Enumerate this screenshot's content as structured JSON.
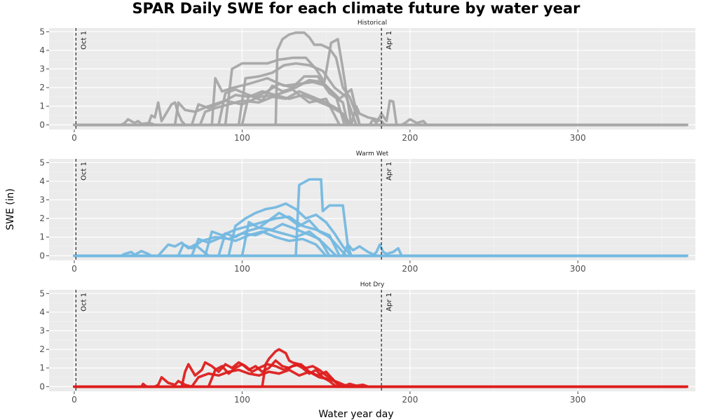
{
  "chart_data": {
    "type": "line",
    "title": "SPAR Daily SWE for each climate future by water year",
    "xlabel": "Water year day",
    "ylabel": "SWE (in)",
    "xlim": [
      -15,
      370
    ],
    "ylim": [
      -0.25,
      5.2
    ],
    "x_ticks": [
      0,
      100,
      200,
      300
    ],
    "y_ticks": [
      0,
      1,
      2,
      3,
      4,
      5
    ],
    "grid": true,
    "reference_lines": [
      {
        "x": 1,
        "label": "Oct 1"
      },
      {
        "x": 183,
        "label": "Apr 1"
      }
    ],
    "panels": [
      {
        "name": "Historical",
        "color": "#a6a6a6",
        "series": [
          {
            "x": [
              0,
              120,
              121,
              124,
              128,
              132,
              137,
              140,
              143,
              147,
              152,
              156,
              160,
              164,
              167,
              170,
              365
            ],
            "y": [
              0,
              0,
              4.0,
              4.6,
              4.85,
              4.95,
              4.95,
              4.7,
              4.3,
              4.3,
              4.1,
              3.6,
              2.0,
              1.5,
              0.8,
              0,
              0
            ]
          },
          {
            "x": [
              0,
              90,
              94,
              100,
              108,
              115,
              122,
              130,
              138,
              144,
              149,
              153,
              157,
              160,
              165,
              365
            ],
            "y": [
              0,
              0,
              3.0,
              3.3,
              3.3,
              3.3,
              3.5,
              3.6,
              3.6,
              3.0,
              2.3,
              4.4,
              4.6,
              3.0,
              0,
              0
            ]
          },
          {
            "x": [
              0,
              98,
              102,
              110,
              118,
              125,
              132,
              140,
              148,
              155,
              162,
              168,
              365
            ],
            "y": [
              0,
              0,
              2.5,
              2.6,
              2.8,
              3.2,
              3.3,
              3.2,
              2.9,
              2.0,
              1.5,
              0,
              0
            ]
          },
          {
            "x": [
              0,
              82,
              84,
              88,
              95,
              104,
              115,
              125,
              134,
              142,
              150,
              158,
              165,
              170,
              365
            ],
            "y": [
              0,
              0,
              2.5,
              1.8,
              2.0,
              2.2,
              2.5,
              2.1,
              2.2,
              2.3,
              2.1,
              1.4,
              1.9,
              0,
              0
            ]
          },
          {
            "x": [
              0,
              100,
              104,
              108,
              115,
              122,
              130,
              137,
              145,
              152,
              160,
              163,
              365
            ],
            "y": [
              0,
              0,
              1.6,
              1.5,
              1.8,
              2.2,
              2.0,
              2.6,
              2.6,
              1.7,
              1.2,
              0,
              0
            ]
          },
          {
            "x": [
              0,
              60,
              62,
              66,
              72,
              80,
              90,
              100,
              110,
              120,
              130,
              140,
              150,
              158,
              365
            ],
            "y": [
              0,
              0,
              1.2,
              0.8,
              0.7,
              1.0,
              1.3,
              1.1,
              1.5,
              1.6,
              1.9,
              1.2,
              1.4,
              0,
              0
            ]
          },
          {
            "x": [
              0,
              70,
              74,
              80,
              88,
              96,
              104,
              112,
              120,
              128,
              136,
              144,
              152,
              160,
              165,
              365
            ],
            "y": [
              0,
              0,
              1.1,
              0.9,
              1.2,
              1.6,
              1.5,
              1.8,
              1.6,
              1.4,
              1.6,
              1.3,
              1.0,
              0.6,
              0,
              0
            ]
          },
          {
            "x": [
              0,
              44,
              46,
              48,
              50,
              52,
              56,
              58,
              60,
              62,
              64,
              66,
              365
            ],
            "y": [
              0,
              0,
              0.5,
              0.4,
              1.2,
              0.2,
              0.8,
              1.1,
              1.2,
              0.6,
              0.2,
              0,
              0
            ]
          },
          {
            "x": [
              0,
              75,
              78,
              84,
              92,
              100,
              110,
              118,
              126,
              134,
              142,
              150,
              158,
              163,
              365
            ],
            "y": [
              0,
              0,
              0.7,
              0.9,
              1.1,
              1.3,
              1.2,
              1.5,
              1.4,
              1.8,
              1.5,
              1.2,
              0.8,
              0,
              0
            ]
          },
          {
            "x": [
              0,
              86,
              90,
              96,
              104,
              112,
              118,
              124,
              132,
              140,
              148,
              156,
              161,
              365
            ],
            "y": [
              0,
              0,
              1.7,
              1.9,
              1.6,
              1.3,
              2.1,
              1.8,
              2.0,
              2.4,
              2.3,
              1.5,
              0,
              0
            ]
          },
          {
            "x": [
              0,
              28,
              30,
              32,
              36,
              38,
              40,
              45,
              48,
              365
            ],
            "y": [
              0,
              0,
              0.1,
              0.3,
              0.1,
              0.2,
              0.05,
              0.1,
              0,
              0
            ]
          },
          {
            "x": [
              0,
              176,
              178,
              180,
              183,
              186,
              188,
              190,
              192,
              365
            ],
            "y": [
              0,
              0,
              0.3,
              0.1,
              0.6,
              0.2,
              1.3,
              1.25,
              0,
              0
            ]
          },
          {
            "x": [
              0,
              165,
              168,
              170,
              175,
              180,
              183,
              185,
              365
            ],
            "y": [
              0,
              0,
              1.0,
              0.6,
              0.4,
              0.3,
              0.2,
              0,
              0
            ]
          },
          {
            "x": [
              0,
              195,
              197,
              200,
              204,
              208,
              210,
              365
            ],
            "y": [
              0,
              0,
              0.1,
              0.3,
              0.1,
              0.2,
              0,
              0
            ]
          }
        ]
      },
      {
        "name": "Warm Wet",
        "color": "#74b8e0",
        "series": [
          {
            "x": [
              0,
              132,
              134,
              138,
              140,
              144,
              147,
              148,
              152,
              156,
              160,
              163,
              165,
              365
            ],
            "y": [
              0,
              0,
              3.8,
              4.0,
              4.1,
              4.1,
              4.1,
              2.4,
              2.7,
              2.7,
              2.7,
              0.5,
              0,
              0
            ]
          },
          {
            "x": [
              0,
              92,
              96,
              102,
              108,
              114,
              120,
              126,
              132,
              138,
              144,
              150,
              155,
              160,
              165,
              365
            ],
            "y": [
              0,
              0,
              1.6,
              2.0,
              2.3,
              2.5,
              2.6,
              2.8,
              2.5,
              2.0,
              2.2,
              1.8,
              1.2,
              0.5,
              0,
              0
            ]
          },
          {
            "x": [
              0,
              78,
              82,
              88,
              96,
              104,
              112,
              120,
              128,
              136,
              144,
              152,
              158,
              365
            ],
            "y": [
              0,
              0,
              1.3,
              1.1,
              1.4,
              1.6,
              1.8,
              2.0,
              2.1,
              1.6,
              1.4,
              1.1,
              0,
              0
            ]
          },
          {
            "x": [
              0,
              100,
              104,
              110,
              116,
              122,
              128,
              134,
              140,
              146,
              152,
              158,
              162,
              365
            ],
            "y": [
              0,
              0,
              1.8,
              1.5,
              1.9,
              2.3,
              2.0,
              1.6,
              1.9,
              1.3,
              1.0,
              0.4,
              0,
              0
            ]
          },
          {
            "x": [
              0,
              62,
              65,
              70,
              76,
              84,
              92,
              100,
              108,
              116,
              124,
              132,
              140,
              148,
              156,
              365
            ],
            "y": [
              0,
              0,
              0.6,
              0.4,
              0.8,
              1.0,
              0.9,
              1.2,
              1.1,
              1.4,
              1.2,
              1.0,
              1.3,
              0.7,
              0,
              0
            ]
          },
          {
            "x": [
              0,
              50,
              53,
              56,
              60,
              64,
              68,
              72,
              76,
              80,
              365
            ],
            "y": [
              0,
              0,
              0.3,
              0.6,
              0.5,
              0.7,
              0.4,
              0.6,
              0.3,
              0,
              0
            ]
          },
          {
            "x": [
              0,
              86,
              90,
              96,
              102,
              110,
              118,
              124,
              130,
              138,
              146,
              152,
              365
            ],
            "y": [
              0,
              0,
              1.2,
              1.0,
              1.3,
              1.5,
              1.4,
              1.7,
              1.5,
              1.2,
              0.9,
              0,
              0
            ]
          },
          {
            "x": [
              0,
              70,
              74,
              80,
              88,
              96,
              104,
              112,
              120,
              128,
              136,
              144,
              150,
              365
            ],
            "y": [
              0,
              0,
              0.9,
              0.7,
              1.0,
              0.8,
              1.1,
              1.3,
              1.0,
              0.8,
              0.9,
              0.6,
              0,
              0
            ]
          },
          {
            "x": [
              0,
              160,
              163,
              166,
              170,
              175,
              180,
              365
            ],
            "y": [
              0,
              0,
              0.6,
              0.3,
              0.5,
              0.2,
              0,
              0
            ]
          },
          {
            "x": [
              0,
              178,
              180,
              182,
              184,
              186,
              190,
              193,
              195,
              365
            ],
            "y": [
              0,
              0,
              0.2,
              0.6,
              0.2,
              0.1,
              0.2,
              0.4,
              0,
              0
            ]
          },
          {
            "x": [
              0,
              28,
              30,
              34,
              36,
              40,
              44,
              46,
              365
            ],
            "y": [
              0,
              0,
              0.1,
              0.2,
              0.05,
              0.25,
              0.1,
              0,
              0
            ]
          }
        ]
      },
      {
        "name": "Hot Dry",
        "color": "#de1d1d",
        "series": [
          {
            "x": [
              0,
              112,
              114,
              116,
              118,
              120,
              122,
              124,
              126,
              128,
              130,
              134,
              138,
              142,
              146,
              150,
              154,
              158,
              365
            ],
            "y": [
              0,
              0,
              1.2,
              1.5,
              1.7,
              1.9,
              2.0,
              1.9,
              1.8,
              1.4,
              1.3,
              1.2,
              1.0,
              1.1,
              0.9,
              0.6,
              0.4,
              0,
              0
            ]
          },
          {
            "x": [
              0,
              64,
              66,
              68,
              72,
              76,
              78,
              82,
              86,
              90,
              94,
              98,
              102,
              106,
              110,
              115,
              120,
              125,
              130,
              135,
              140,
              145,
              150,
              155,
              160,
              365
            ],
            "y": [
              0,
              0,
              0.8,
              1.2,
              0.6,
              0.9,
              1.3,
              1.1,
              0.8,
              1.2,
              1.0,
              1.3,
              1.1,
              0.8,
              1.0,
              1.2,
              1.1,
              0.9,
              1.1,
              1.2,
              0.8,
              0.6,
              0.8,
              0.3,
              0,
              0
            ]
          },
          {
            "x": [
              0,
              80,
              84,
              88,
              92,
              96,
              100,
              104,
              108,
              112,
              116,
              120,
              124,
              128,
              132,
              136,
              140,
              144,
              148,
              152,
              156,
              365
            ],
            "y": [
              0,
              0,
              0.9,
              1.1,
              0.7,
              1.0,
              1.2,
              0.9,
              1.1,
              0.8,
              1.0,
              1.4,
              1.1,
              1.0,
              1.2,
              1.0,
              0.7,
              0.9,
              0.5,
              0.3,
              0,
              0
            ]
          },
          {
            "x": [
              0,
              48,
              50,
              52,
              56,
              60,
              62,
              66,
              70,
              365
            ],
            "y": [
              0,
              0,
              0.1,
              0.5,
              0.2,
              0.1,
              0.3,
              0.1,
              0,
              0
            ]
          },
          {
            "x": [
              0,
              70,
              74,
              80,
              86,
              92,
              98,
              104,
              110,
              116,
              122,
              128,
              134,
              140,
              146,
              152,
              158,
              163,
              365
            ],
            "y": [
              0,
              0,
              0.5,
              0.7,
              0.6,
              0.8,
              0.9,
              0.7,
              0.6,
              0.8,
              0.7,
              0.9,
              0.6,
              0.8,
              0.5,
              0.4,
              0.2,
              0,
              0
            ]
          },
          {
            "x": [
              0,
              40,
              41,
              43,
              365
            ],
            "y": [
              0,
              0,
              0.15,
              0,
              0
            ]
          },
          {
            "x": [
              0,
              160,
              164,
              168,
              172,
              175,
              365
            ],
            "y": [
              0,
              0,
              0.15,
              0.05,
              0.1,
              0,
              0
            ]
          }
        ]
      }
    ]
  }
}
